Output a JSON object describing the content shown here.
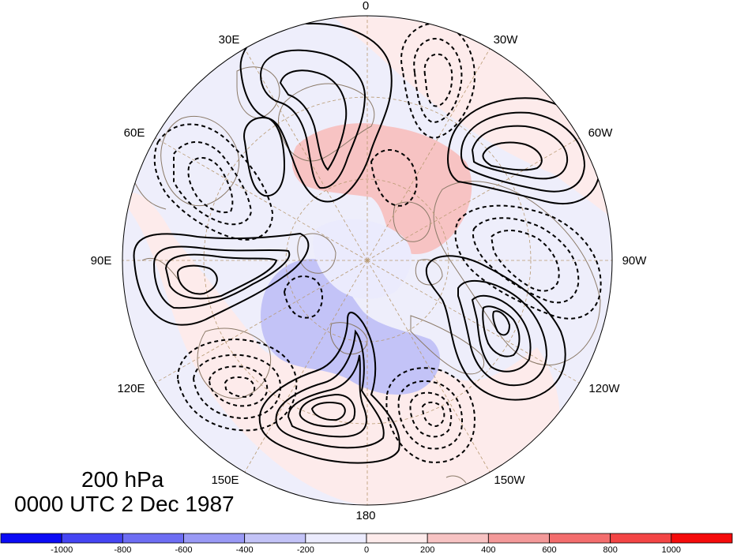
{
  "title": {
    "level": "200 hPa",
    "time": "0000 UTC 2 Dec 1987"
  },
  "map": {
    "projection": "north-polar-stereographic",
    "longitude_labels": [
      "0",
      "30W",
      "60W",
      "90W",
      "120W",
      "150W",
      "180",
      "150E",
      "120E",
      "90E",
      "60E",
      "30E"
    ],
    "colors": {
      "ocean_fill": "#eeeefb",
      "coast": "#8b7a68",
      "graticule": "#b89a72",
      "contour": "#000000"
    },
    "contours": {
      "positive_style": "solid",
      "negative_style": "dashed"
    }
  },
  "colorbar": {
    "tick_labels": [
      "-1000",
      "-800",
      "-600",
      "-400",
      "-200",
      "0",
      "200",
      "400",
      "600",
      "800",
      "1000"
    ],
    "colors": [
      "#0b0bf5",
      "#4545f3",
      "#6d6df3",
      "#9999f5",
      "#c3c3f7",
      "#ebebfd",
      "#fdebeb",
      "#f7c3c3",
      "#f39999",
      "#f36d6d",
      "#f34545",
      "#f50b0b"
    ]
  }
}
